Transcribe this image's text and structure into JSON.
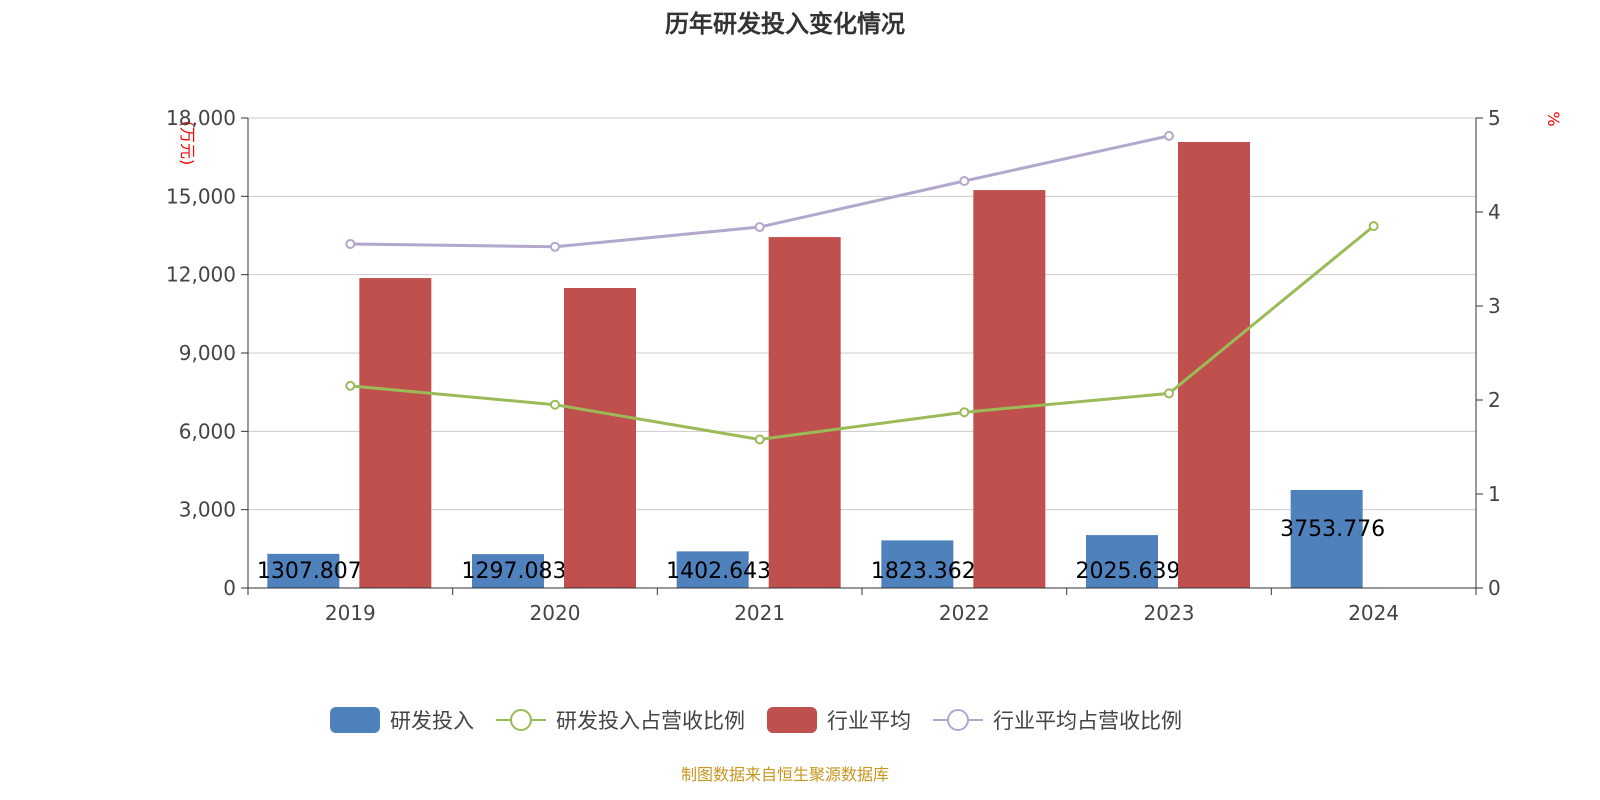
{
  "chart_data": {
    "type": "bar",
    "title": "历年研发投入变化情况",
    "categories": [
      "2019",
      "2020",
      "2021",
      "2022",
      "2023",
      "2024"
    ],
    "ylabel_left": "(万元)",
    "ylabel_right": "%",
    "ylim_left": [
      0,
      18000
    ],
    "ylim_right": [
      0,
      5
    ],
    "yticks_left": [
      "0",
      "3,000",
      "6,000",
      "9,000",
      "12,000",
      "15,000",
      "18,000"
    ],
    "yticks_right": [
      "0",
      "1",
      "2",
      "3",
      "4",
      "5"
    ],
    "grid": true,
    "legend_position": "bottom",
    "series": [
      {
        "name": "研发投入",
        "type": "bar",
        "axis": "left",
        "color": "#4f81bd",
        "values": [
          1307.807,
          1297.083,
          1402.643,
          1823.362,
          2025.639,
          3753.776
        ],
        "labels": [
          "1307.807",
          "1297.083",
          "1402.643",
          "1823.362",
          "2025.639",
          "3753.776"
        ]
      },
      {
        "name": "研发投入占营收比例",
        "type": "line",
        "axis": "right",
        "color": "#9bbb59",
        "values": [
          2.15,
          1.95,
          1.58,
          1.87,
          2.07,
          3.85
        ]
      },
      {
        "name": "行业平均",
        "type": "bar",
        "axis": "left",
        "color": "#c0504d",
        "values": [
          11870,
          11490,
          13440,
          15240,
          17080,
          null
        ]
      },
      {
        "name": "行业平均占营收比例",
        "type": "line",
        "axis": "right",
        "color": "#b3a8cc",
        "values": [
          3.66,
          3.63,
          3.84,
          4.33,
          4.81,
          null
        ]
      }
    ]
  },
  "footer": "制图数据来自恒生聚源数据库"
}
